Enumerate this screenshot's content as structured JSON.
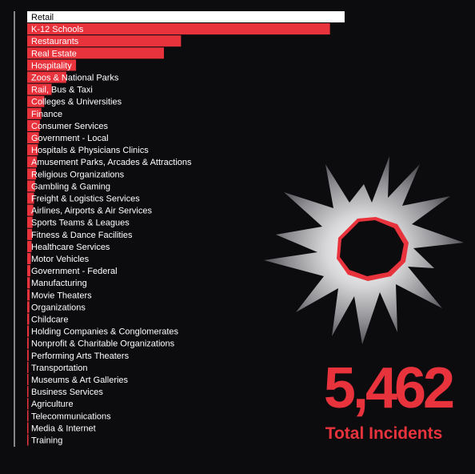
{
  "colors": {
    "background": "#0c0c0f",
    "accent": "#e8333d",
    "highlight_bar": "#ffffff",
    "text": "#ffffff"
  },
  "summary": {
    "total_value": "5,462",
    "total_label": "Total Incidents",
    "graphic": "bullet-hole-icon"
  },
  "chart_data": {
    "type": "bar",
    "orientation": "horizontal",
    "title": "",
    "xlabel": "",
    "ylabel": "",
    "xlim": [
      0,
      1310
    ],
    "grid": false,
    "highlighted_category": "Retail",
    "categories": [
      "Retail",
      "K-12 Schools",
      "Restaurants",
      "Real Estate",
      "Hospitality",
      "Zoos & National Parks",
      "Rail, Bus & Taxi",
      "Colleges & Universities",
      "Finance",
      "Consumer Services",
      "Government - Local",
      "Hospitals & Physicians Clinics",
      "Amusement Parks, Arcades & Attractions",
      "Religious Organizations",
      "Gambling & Gaming",
      "Freight & Logistics Services",
      "Airlines, Airports & Air Services",
      "Sports Teams & Leagues",
      "Fitness & Dance Facilities",
      "Healthcare Services",
      "Motor Vehicles",
      "Government - Federal",
      "Manufacturing",
      "Movie Theaters",
      "Organizations",
      "Childcare",
      "Holding Companies & Conglomerates",
      "Nonprofit & Charitable Organizations",
      "Performing Arts Theaters",
      "Transportation",
      "Museums & Art Galleries",
      "Business Services",
      "Agriculture",
      "Telecommunications",
      "Media & Internet",
      "Training"
    ],
    "values": [
      1300,
      1240,
      630,
      560,
      200,
      160,
      100,
      70,
      58,
      52,
      48,
      44,
      40,
      36,
      32,
      28,
      25,
      22,
      20,
      18,
      15,
      13,
      11,
      10,
      9,
      8,
      7,
      6,
      6,
      5,
      5,
      4,
      4,
      3,
      3,
      2
    ]
  }
}
